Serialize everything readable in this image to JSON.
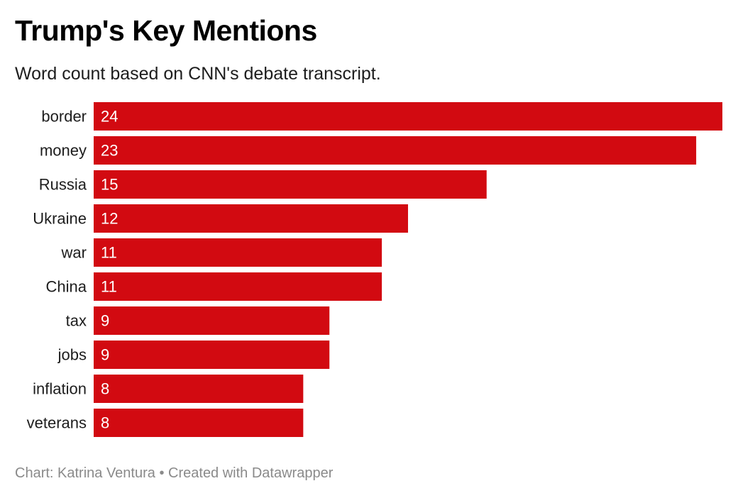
{
  "chart_data": {
    "type": "bar",
    "orientation": "horizontal",
    "title": "Trump's Key Mentions",
    "subtitle": "Word count based on CNN's debate transcript.",
    "categories": [
      "border",
      "money",
      "Russia",
      "Ukraine",
      "war",
      "China",
      "tax",
      "jobs",
      "inflation",
      "veterans"
    ],
    "values": [
      24,
      23,
      15,
      12,
      11,
      11,
      9,
      9,
      8,
      8
    ],
    "xlim": [
      0,
      24
    ],
    "grid": false,
    "legend": "none",
    "bar_color": "#d20a11",
    "value_label_color": "#ffffff"
  },
  "footer": {
    "credit": "Chart: Katrina Ventura",
    "separator": "•",
    "tool": "Created with Datawrapper"
  }
}
